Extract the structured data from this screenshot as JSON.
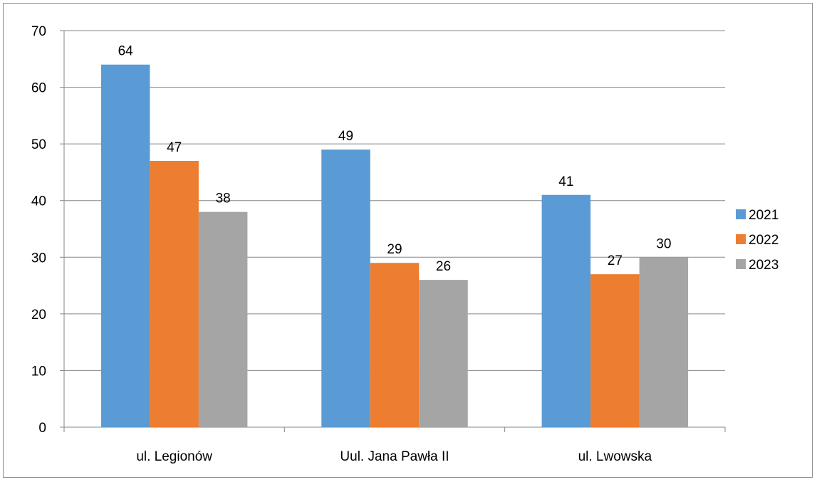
{
  "chart_data": {
    "type": "bar",
    "title": "",
    "xlabel": "",
    "ylabel": "",
    "categories": [
      "ul. Legionów",
      "Uul. Jana Pawła II",
      "ul. Lwowska"
    ],
    "series": [
      {
        "name": "2021",
        "color": "#5b9bd5",
        "values": [
          64,
          49,
          41
        ]
      },
      {
        "name": "2022",
        "color": "#ed7d31",
        "values": [
          47,
          29,
          27
        ]
      },
      {
        "name": "2023",
        "color": "#a5a5a5",
        "values": [
          38,
          26,
          30
        ]
      }
    ],
    "ylim": [
      0,
      70
    ],
    "yticks": [
      "0",
      "10",
      "20",
      "30",
      "40",
      "50",
      "60",
      "70"
    ],
    "grid": true,
    "data_labels": true,
    "legend_position": "right"
  }
}
